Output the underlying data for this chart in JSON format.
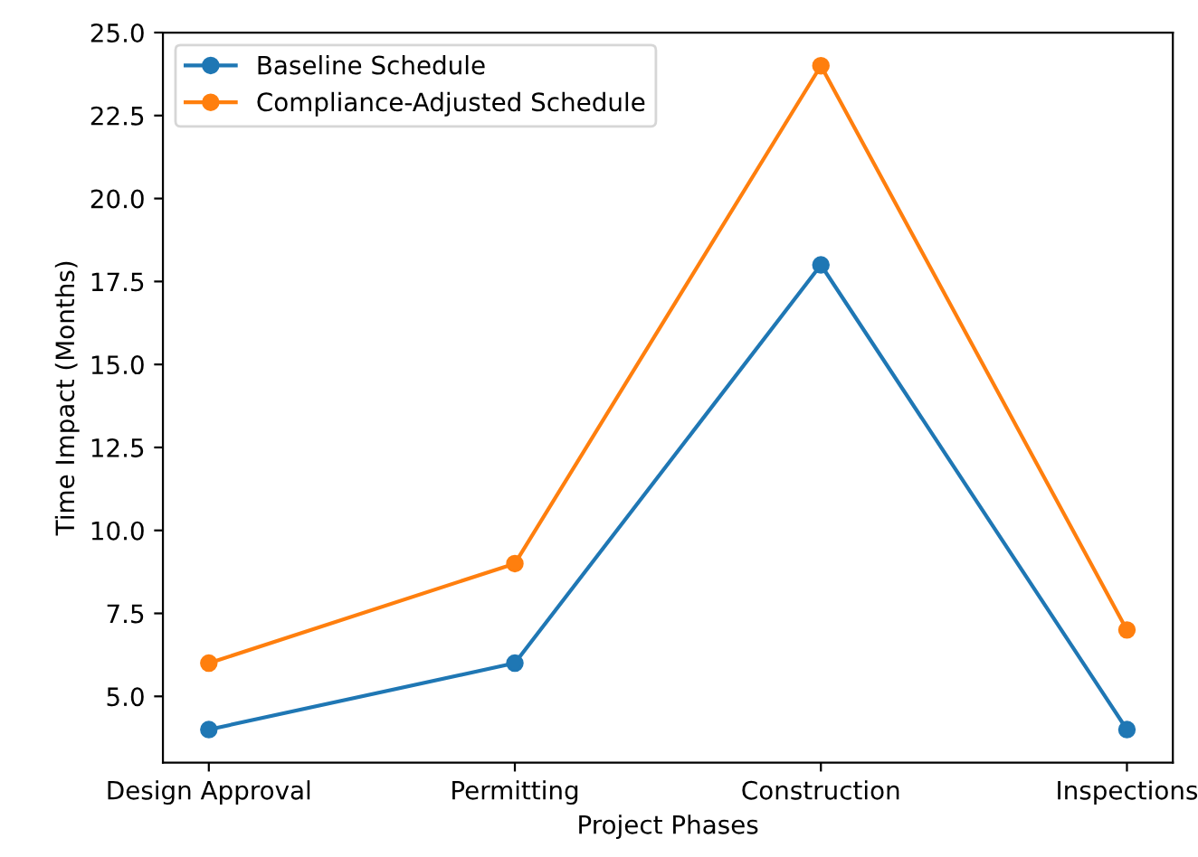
{
  "chart_data": {
    "type": "line",
    "xlabel": "Project Phases",
    "ylabel": "Time Impact (Months)",
    "categories": [
      "Design Approval",
      "Permitting",
      "Construction",
      "Inspections"
    ],
    "series": [
      {
        "name": "Baseline Schedule",
        "color": "#1f77b4",
        "values": [
          4,
          6,
          18,
          4
        ]
      },
      {
        "name": "Compliance-Adjusted Schedule",
        "color": "#ff7f0e",
        "values": [
          6,
          9,
          24,
          7
        ]
      }
    ],
    "ylim": [
      3,
      25
    ],
    "yticks": [
      {
        "value": 5,
        "label": "5.0"
      },
      {
        "value": 7.5,
        "label": "7.5"
      },
      {
        "value": 10,
        "label": "10.0"
      },
      {
        "value": 12.5,
        "label": "12.5"
      },
      {
        "value": 15,
        "label": "15.0"
      },
      {
        "value": 17.5,
        "label": "17.5"
      },
      {
        "value": 20,
        "label": "20.0"
      },
      {
        "value": 22.5,
        "label": "22.5"
      },
      {
        "value": 25,
        "label": "25.0"
      }
    ],
    "marker": "circle",
    "line_style": "solid",
    "legend": "top left",
    "grid": false
  }
}
